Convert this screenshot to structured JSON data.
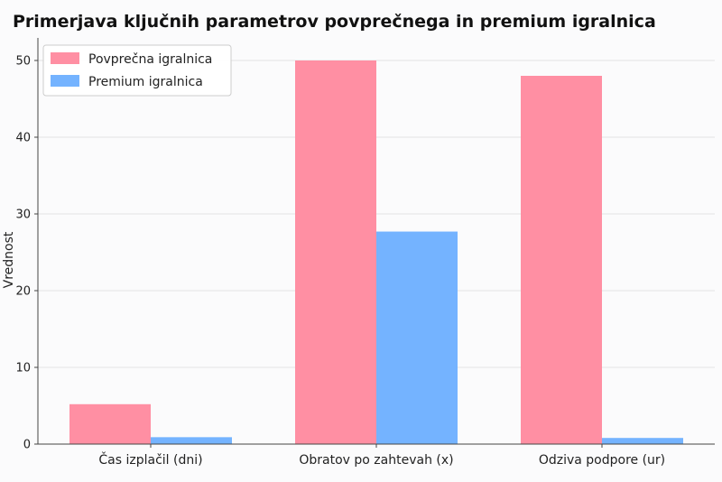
{
  "chart_data": {
    "type": "bar",
    "title": "Primerjava ključnih parametrov povprečnega in premium igralnica",
    "xlabel": "",
    "ylabel": "Vrednost",
    "categories": [
      "Čas izplačil (dni)",
      "Obratov po zahtevah (x)",
      "Odziva podpore (ur)"
    ],
    "series": [
      {
        "name": "Povprečna igralnica",
        "values": [
          5.2,
          50,
          48
        ],
        "color": "#ff8fa3"
      },
      {
        "name": "Premium igralnica",
        "values": [
          0.9,
          27.7,
          0.8
        ],
        "color": "#74b3ff"
      }
    ],
    "ylim": [
      0,
      52
    ],
    "yticks": [
      0,
      10,
      20,
      30,
      40,
      50
    ],
    "grid": true,
    "legend_position": "top-left"
  }
}
